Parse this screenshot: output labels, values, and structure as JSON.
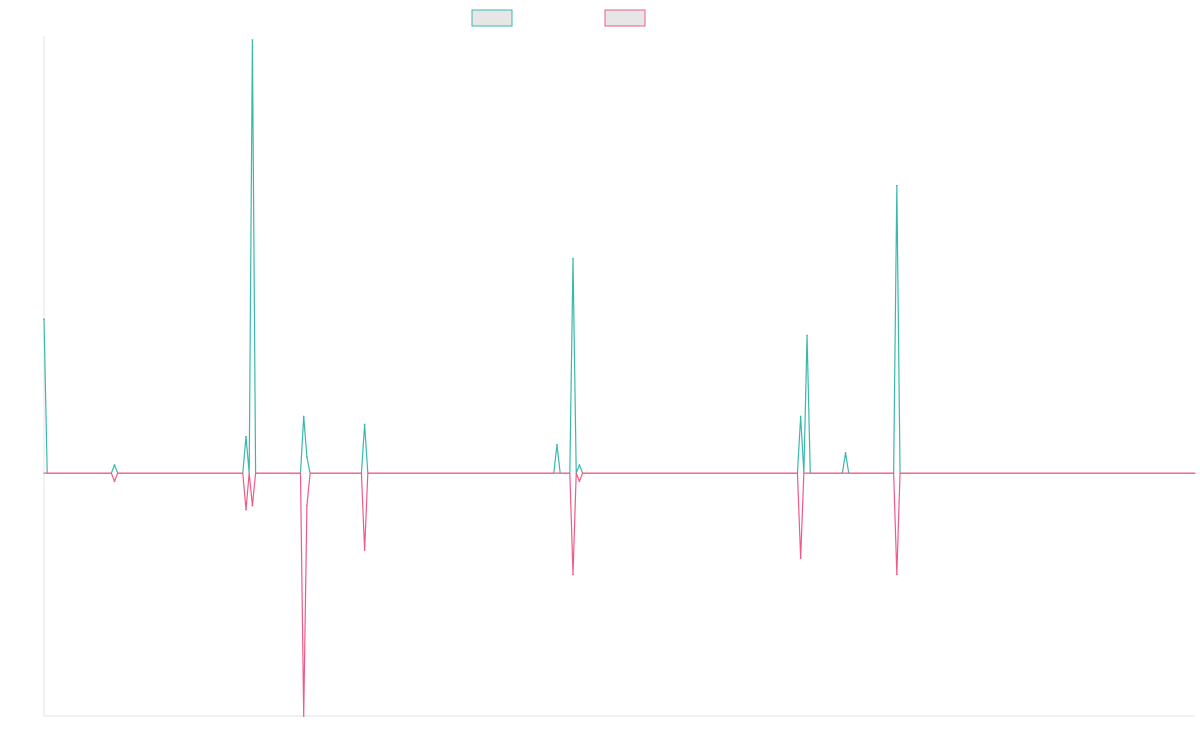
{
  "chart_data": {
    "type": "line",
    "title": "",
    "xlabel": "",
    "ylabel": "",
    "grid": false,
    "legend": {
      "placement": "top-center"
    },
    "x": [
      0,
      1,
      2,
      3,
      4,
      5,
      6,
      7,
      8,
      9,
      10,
      11,
      12,
      13,
      14,
      15,
      16,
      17,
      18,
      19,
      20,
      21,
      22,
      23,
      24,
      25,
      26,
      27,
      28,
      29,
      30,
      31,
      32,
      33,
      34,
      35,
      36,
      37,
      38,
      39,
      40,
      41,
      42,
      43,
      44,
      45,
      46,
      47,
      48,
      49,
      50,
      51,
      52,
      53,
      54,
      55,
      56,
      57,
      58,
      59,
      60,
      61,
      62,
      63,
      64,
      65,
      66,
      67,
      68,
      69,
      70,
      71,
      72,
      73,
      74,
      75,
      76,
      77,
      78,
      79,
      80,
      81,
      82,
      83,
      84,
      85,
      86,
      87,
      88,
      89,
      90,
      91,
      92,
      93,
      94,
      95,
      96,
      97,
      98,
      99,
      100,
      101,
      102,
      103,
      104,
      105,
      106,
      107,
      108,
      109,
      110,
      111,
      112,
      113,
      114,
      115,
      116,
      117,
      118,
      119,
      120,
      121,
      122,
      123,
      124,
      125,
      126,
      127,
      128,
      129,
      130,
      131,
      132,
      133,
      134,
      135,
      136,
      137,
      138,
      139,
      140,
      141,
      142,
      143,
      144,
      145,
      146,
      147,
      148,
      149,
      150,
      151,
      152,
      153,
      154,
      155,
      156,
      157,
      158,
      159,
      160,
      161,
      162,
      163,
      164,
      165,
      166,
      167,
      168,
      169,
      170,
      171,
      172,
      173,
      174,
      175,
      176,
      177,
      178,
      179,
      180,
      181,
      182,
      183,
      184,
      185,
      186,
      187,
      188,
      189,
      190,
      191,
      192,
      193,
      194,
      195,
      196,
      197,
      198,
      199,
      200,
      201,
      202,
      203,
      204,
      205,
      206,
      207,
      208,
      209,
      210,
      211,
      212,
      213,
      214,
      215,
      216,
      217,
      218,
      219,
      220,
      221,
      222,
      223,
      224,
      225,
      226,
      227,
      228,
      229,
      230,
      231,
      232,
      233,
      234,
      235,
      236,
      237,
      238,
      239,
      240,
      241,
      242,
      243,
      244,
      245,
      246,
      247,
      248,
      249,
      250,
      251,
      252,
      253,
      254,
      255,
      256,
      257,
      258,
      259,
      260,
      261,
      262,
      263,
      264,
      265,
      266,
      267,
      268,
      269,
      270,
      271,
      272,
      273,
      274,
      275,
      276,
      277,
      278,
      279,
      280,
      281,
      282,
      283,
      284,
      285,
      286,
      287,
      288,
      289,
      290,
      291,
      292,
      293,
      294,
      295,
      296,
      297,
      298,
      299,
      300,
      301,
      302,
      303,
      304,
      305,
      306,
      307,
      308,
      309,
      310,
      311,
      312,
      313,
      314,
      315,
      316,
      317,
      318,
      319,
      320,
      321,
      322,
      323,
      324,
      325,
      326,
      327,
      328,
      329,
      330,
      331,
      332,
      333,
      334,
      335,
      336,
      337,
      338,
      339,
      340,
      341,
      342,
      343,
      344,
      345,
      346,
      347,
      348,
      349,
      350,
      351,
      352,
      353,
      354,
      355,
      356,
      357,
      358,
      359
    ],
    "ylim": [
      -60,
      108
    ],
    "xlim": [
      0,
      359
    ],
    "series": [
      {
        "color": "#3bb8ad",
        "fill": "#e6e6e6",
        "values": [
          38,
          0,
          0,
          0,
          0,
          0,
          0,
          0,
          0,
          0,
          0,
          0,
          0,
          0,
          0,
          0,
          0,
          0,
          0,
          0,
          0,
          0,
          2,
          0,
          0,
          0,
          0,
          0,
          0,
          0,
          0,
          0,
          0,
          0,
          0,
          0,
          0,
          0,
          0,
          0,
          0,
          0,
          0,
          0,
          0,
          0,
          0,
          0,
          0,
          0,
          0,
          0,
          0,
          0,
          0,
          0,
          0,
          0,
          0,
          0,
          0,
          0,
          0,
          9,
          0,
          107,
          0,
          0,
          0,
          0,
          0,
          0,
          0,
          0,
          0,
          0,
          0,
          0,
          0,
          0,
          0,
          14,
          4,
          0,
          0,
          0,
          0,
          0,
          0,
          0,
          0,
          0,
          0,
          0,
          0,
          0,
          0,
          0,
          0,
          0,
          12,
          0,
          0,
          0,
          0,
          0,
          0,
          0,
          0,
          0,
          0,
          0,
          0,
          0,
          0,
          0,
          0,
          0,
          0,
          0,
          0,
          0,
          0,
          0,
          0,
          0,
          0,
          0,
          0,
          0,
          0,
          0,
          0,
          0,
          0,
          0,
          0,
          0,
          0,
          0,
          0,
          0,
          0,
          0,
          0,
          0,
          0,
          0,
          0,
          0,
          0,
          0,
          0,
          0,
          0,
          0,
          0,
          0,
          0,
          0,
          7,
          0,
          0,
          0,
          0,
          53,
          0,
          2,
          0,
          0,
          0,
          0,
          0,
          0,
          0,
          0,
          0,
          0,
          0,
          0,
          0,
          0,
          0,
          0,
          0,
          0,
          0,
          0,
          0,
          0,
          0,
          0,
          0,
          0,
          0,
          0,
          0,
          0,
          0,
          0,
          0,
          0,
          0,
          0,
          0,
          0,
          0,
          0,
          0,
          0,
          0,
          0,
          0,
          0,
          0,
          0,
          0,
          0,
          0,
          0,
          0,
          0,
          0,
          0,
          0,
          0,
          0,
          0,
          0,
          0,
          0,
          0,
          0,
          0,
          0,
          0,
          14,
          0,
          34,
          0,
          0,
          0,
          0,
          0,
          0,
          0,
          0,
          0,
          0,
          0,
          5,
          0,
          0,
          0,
          0,
          0,
          0,
          0,
          0,
          0,
          0,
          0,
          0,
          0,
          0,
          0,
          71,
          0,
          0,
          0,
          0,
          0,
          0,
          0,
          0,
          0,
          0,
          0,
          0,
          0,
          0,
          0,
          0,
          0,
          0,
          0,
          0,
          0,
          0,
          0,
          0,
          0,
          0,
          0,
          0,
          0,
          0,
          0,
          0,
          0,
          0,
          0,
          0,
          0,
          0,
          0,
          0,
          0,
          0,
          0,
          0,
          0,
          0,
          0,
          0,
          0,
          0,
          0,
          0,
          0,
          0,
          0,
          0,
          0,
          0,
          0,
          0,
          0,
          0,
          0,
          0,
          0,
          0,
          0,
          0,
          0,
          0,
          0,
          0,
          0,
          0,
          0,
          0,
          0,
          0,
          0,
          0,
          0,
          0,
          0,
          0,
          0,
          0,
          0,
          0,
          0,
          0,
          0,
          0,
          0
        ]
      },
      {
        "color": "#ef5b86",
        "fill": "#e6e6e6",
        "values": [
          0,
          0,
          0,
          0,
          0,
          0,
          0,
          0,
          0,
          0,
          0,
          0,
          0,
          0,
          0,
          0,
          0,
          0,
          0,
          0,
          0,
          0,
          -2,
          0,
          0,
          0,
          0,
          0,
          0,
          0,
          0,
          0,
          0,
          0,
          0,
          0,
          0,
          0,
          0,
          0,
          0,
          0,
          0,
          0,
          0,
          0,
          0,
          0,
          0,
          0,
          0,
          0,
          0,
          0,
          0,
          0,
          0,
          0,
          0,
          0,
          0,
          0,
          0,
          -9,
          0,
          -8,
          0,
          0,
          0,
          0,
          0,
          0,
          0,
          0,
          0,
          0,
          0,
          0,
          0,
          0,
          0,
          -60,
          -8,
          0,
          0,
          0,
          0,
          0,
          0,
          0,
          0,
          0,
          0,
          0,
          0,
          0,
          0,
          0,
          0,
          0,
          -19,
          0,
          0,
          0,
          0,
          0,
          0,
          0,
          0,
          0,
          0,
          0,
          0,
          0,
          0,
          0,
          0,
          0,
          0,
          0,
          0,
          0,
          0,
          0,
          0,
          0,
          0,
          0,
          0,
          0,
          0,
          0,
          0,
          0,
          0,
          0,
          0,
          0,
          0,
          0,
          0,
          0,
          0,
          0,
          0,
          0,
          0,
          0,
          0,
          0,
          0,
          0,
          0,
          0,
          0,
          0,
          0,
          0,
          0,
          0,
          0,
          0,
          0,
          0,
          0,
          -25,
          0,
          -2,
          0,
          0,
          0,
          0,
          0,
          0,
          0,
          0,
          0,
          0,
          0,
          0,
          0,
          0,
          0,
          0,
          0,
          0,
          0,
          0,
          0,
          0,
          0,
          0,
          0,
          0,
          0,
          0,
          0,
          0,
          0,
          0,
          0,
          0,
          0,
          0,
          0,
          0,
          0,
          0,
          0,
          0,
          0,
          0,
          0,
          0,
          0,
          0,
          0,
          0,
          0,
          0,
          0,
          0,
          0,
          0,
          0,
          0,
          0,
          0,
          0,
          0,
          0,
          0,
          0,
          0,
          0,
          0,
          -21,
          0,
          0,
          0,
          0,
          0,
          0,
          0,
          0,
          0,
          0,
          0,
          0,
          0,
          0,
          0,
          0,
          0,
          0,
          0,
          0,
          0,
          0,
          0,
          0,
          0,
          0,
          0,
          0,
          0,
          -25,
          0,
          0,
          0,
          0,
          0,
          0,
          0,
          0,
          0,
          0,
          0,
          0,
          0,
          0,
          0,
          0,
          0,
          0,
          0,
          0,
          0,
          0,
          0,
          0,
          0,
          0,
          0,
          0,
          0,
          0,
          0,
          0,
          0,
          0,
          0,
          0,
          0,
          0,
          0,
          0,
          0,
          0,
          0,
          0,
          0,
          0,
          0,
          0,
          0,
          0,
          0,
          0,
          0,
          0,
          0,
          0,
          0,
          0,
          0,
          0,
          0,
          0,
          0,
          0,
          0,
          0,
          0,
          0,
          0,
          0,
          0,
          0,
          0,
          0,
          0,
          0,
          0,
          0,
          0,
          0,
          0,
          0,
          0,
          0,
          0,
          0,
          0,
          0,
          0,
          0,
          0,
          0,
          0
        ]
      }
    ]
  }
}
